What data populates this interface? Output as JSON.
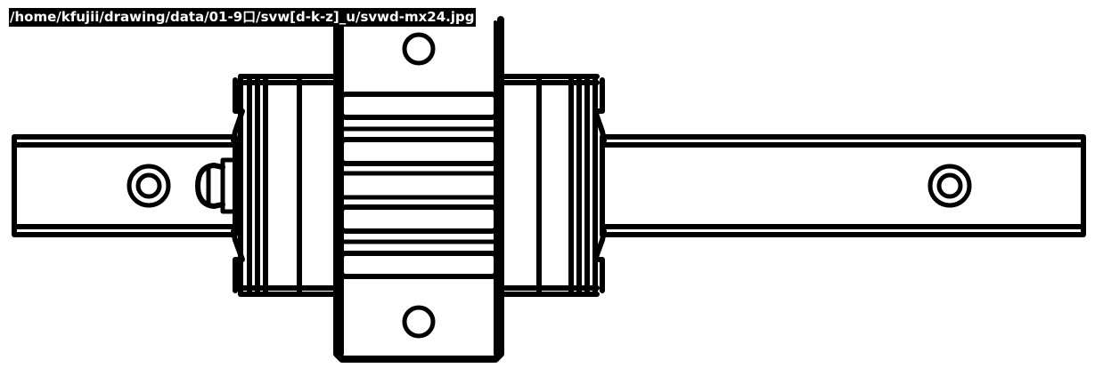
{
  "header": {
    "file_path": "/home/kfujii/drawing/data/01-9口/svw[d-k-z]_u/svwd-mx24.jpg"
  },
  "colors": {
    "ink": "#000000",
    "paper": "#ffffff",
    "label_text": "#ffffff"
  }
}
